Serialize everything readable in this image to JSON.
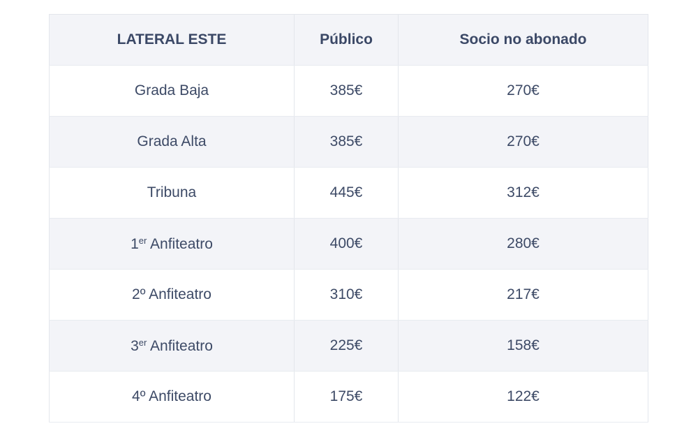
{
  "table": {
    "headers": [
      "LATERAL ESTE",
      "Público",
      "Socio no abonado"
    ],
    "rows": [
      {
        "zone_main": "Grada Baja",
        "zone_sup": "",
        "zone_rest": "",
        "public": "385€",
        "socio": "270€"
      },
      {
        "zone_main": "Grada Alta",
        "zone_sup": "",
        "zone_rest": "",
        "public": "385€",
        "socio": "270€"
      },
      {
        "zone_main": "Tribuna",
        "zone_sup": "",
        "zone_rest": "",
        "public": "445€",
        "socio": "312€"
      },
      {
        "zone_main": "1",
        "zone_sup": "er",
        "zone_rest": " Anfiteatro",
        "public": "400€",
        "socio": "280€"
      },
      {
        "zone_main": "2º",
        "zone_sup": "",
        "zone_rest": " Anfiteatro",
        "public": "310€",
        "socio": "217€"
      },
      {
        "zone_main": "3",
        "zone_sup": "er",
        "zone_rest": " Anfiteatro",
        "public": "225€",
        "socio": "158€"
      },
      {
        "zone_main": "4º",
        "zone_sup": "",
        "zone_rest": " Anfiteatro",
        "public": "175€",
        "socio": "122€"
      }
    ]
  }
}
